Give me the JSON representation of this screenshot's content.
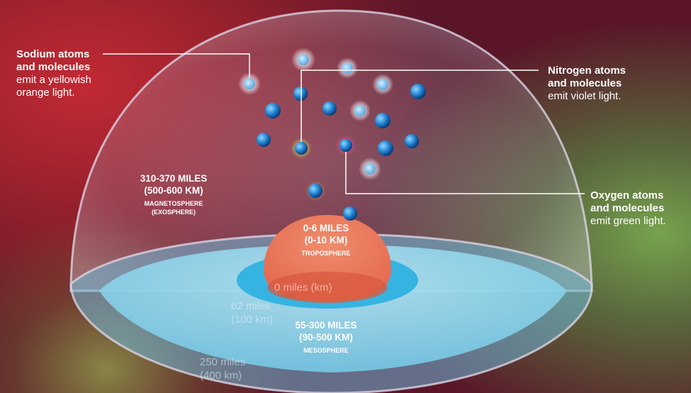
{
  "labels": {
    "sodium": {
      "title_1": "Sodium atoms",
      "title_2": "and molecules",
      "desc_1": "emit a yellowish",
      "desc_2": "orange light."
    },
    "nitrogen": {
      "title_1": "Nitrogen atoms",
      "title_2": "and molecules",
      "desc_1": "emit violet light."
    },
    "oxygen": {
      "title_1": "Oxygen atoms",
      "title_2": "and molecules",
      "desc_1": "emit green light."
    }
  },
  "layers": {
    "magnetosphere": {
      "range_1": "310-370 MILES",
      "range_2": "(500-600 KM)",
      "name_1": "MAGNETOSPHERE",
      "name_2": "(EXOSPHERE)"
    },
    "troposphere": {
      "range_1": "0-6 MILES",
      "range_2": "(0-10 KM)",
      "name": "TROPOSPHERE"
    },
    "mesosphere": {
      "range_1": "55-300 MILES",
      "range_2": "(90-500 KM)",
      "name": "MESOSPHERE"
    }
  },
  "scale": {
    "zero": "0 miles (km)",
    "mid_1": "62 miles",
    "mid_2": "(100 km)",
    "outer_1": "250 miles",
    "outer_2": "(400 km)"
  },
  "colors": {
    "sodium": "#e8dfe6",
    "nitrogen": "#1f7fd0",
    "oxygen": "#1f7fd0",
    "troposphere": "#ea7357",
    "mesosphere": "#8fd3ec"
  }
}
